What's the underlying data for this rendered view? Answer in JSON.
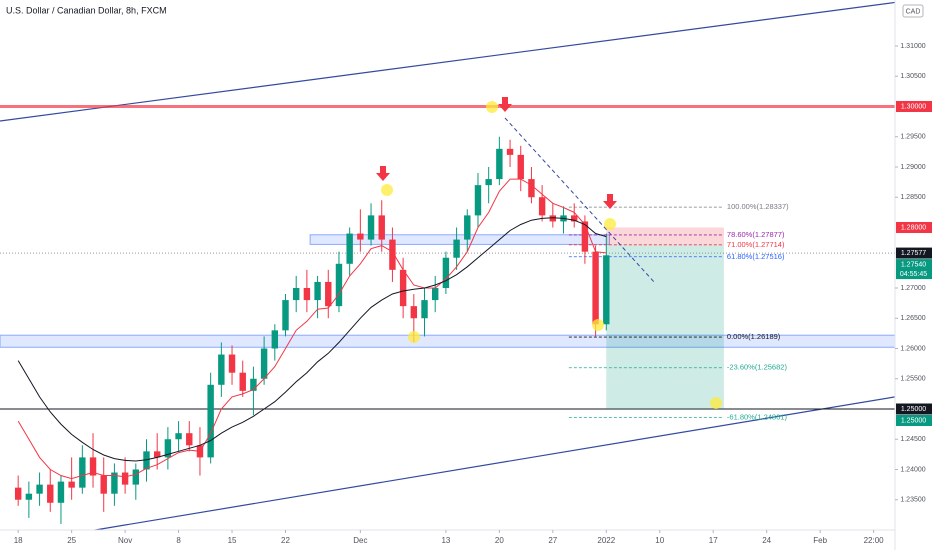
{
  "chart_data": {
    "type": "candlestick",
    "title": "U.S. Dollar / Canadian Dollar, 8h, FXCM",
    "currency": "CAD",
    "xlim": [
      -1.7,
      82
    ],
    "ylim": [
      1.23,
      1.3176
    ],
    "xticks": [
      {
        "value": 0,
        "label": "18"
      },
      {
        "value": 5,
        "label": "25"
      },
      {
        "value": 10,
        "label": "Nov"
      },
      {
        "value": 15,
        "label": "8"
      },
      {
        "value": 20,
        "label": "15"
      },
      {
        "value": 25,
        "label": "22"
      },
      {
        "value": 32,
        "label": "Dec"
      },
      {
        "value": 40,
        "label": "13"
      },
      {
        "value": 45,
        "label": "20"
      },
      {
        "value": 50,
        "label": "27"
      },
      {
        "value": 55,
        "label": "2022"
      },
      {
        "value": 60,
        "label": "10"
      },
      {
        "value": 65,
        "label": "17"
      },
      {
        "value": 70,
        "label": "24"
      },
      {
        "value": 75,
        "label": "Feb"
      },
      {
        "value": 80,
        "label": "22:00"
      }
    ],
    "yticks": [
      {
        "value": 1.31,
        "label": "1.31000"
      },
      {
        "value": 1.305,
        "label": "1.30500"
      },
      {
        "value": 1.295,
        "label": "1.29500"
      },
      {
        "value": 1.29,
        "label": "1.29000"
      },
      {
        "value": 1.285,
        "label": "1.28500"
      },
      {
        "value": 1.27,
        "label": "1.27000"
      },
      {
        "value": 1.265,
        "label": "1.26500"
      },
      {
        "value": 1.26,
        "label": "1.26000"
      },
      {
        "value": 1.255,
        "label": "1.25500"
      },
      {
        "value": 1.245,
        "label": "1.24500"
      },
      {
        "value": 1.24,
        "label": "1.24000"
      },
      {
        "value": 1.235,
        "label": "1.23500"
      }
    ],
    "up_color": "#089981",
    "down_color": "#f23645",
    "x": [
      0,
      1,
      2,
      3,
      4,
      5,
      6,
      7,
      8,
      9,
      10,
      11,
      12,
      13,
      14,
      15,
      16,
      17,
      18,
      19,
      20,
      21,
      22,
      23,
      24,
      25,
      26,
      27,
      28,
      29,
      30,
      31,
      32,
      33,
      34,
      35,
      36,
      37,
      38,
      39,
      40,
      41,
      42,
      43,
      44,
      45,
      46,
      47,
      48,
      49,
      50,
      51,
      52,
      53,
      54,
      55
    ],
    "candles": [
      [
        1.237,
        1.239,
        1.234,
        1.235
      ],
      [
        1.235,
        1.238,
        1.232,
        1.236
      ],
      [
        1.236,
        1.2395,
        1.234,
        1.2375
      ],
      [
        1.2375,
        1.24,
        1.233,
        1.2345
      ],
      [
        1.2345,
        1.239,
        1.231,
        1.238
      ],
      [
        1.238,
        1.242,
        1.235,
        1.237
      ],
      [
        1.237,
        1.244,
        1.236,
        1.242
      ],
      [
        1.242,
        1.246,
        1.237,
        1.239
      ],
      [
        1.239,
        1.242,
        1.233,
        1.236
      ],
      [
        1.236,
        1.241,
        1.234,
        1.2395
      ],
      [
        1.2395,
        1.242,
        1.236,
        1.2375
      ],
      [
        1.2375,
        1.241,
        1.235,
        1.24
      ],
      [
        1.24,
        1.245,
        1.238,
        1.243
      ],
      [
        1.243,
        1.246,
        1.24,
        1.242
      ],
      [
        1.242,
        1.247,
        1.24,
        1.245
      ],
      [
        1.245,
        1.248,
        1.243,
        1.246
      ],
      [
        1.246,
        1.248,
        1.243,
        1.244
      ],
      [
        1.244,
        1.247,
        1.239,
        1.242
      ],
      [
        1.242,
        1.256,
        1.241,
        1.254
      ],
      [
        1.254,
        1.261,
        1.252,
        1.259
      ],
      [
        1.259,
        1.2605,
        1.254,
        1.256
      ],
      [
        1.256,
        1.258,
        1.252,
        1.253
      ],
      [
        1.253,
        1.257,
        1.249,
        1.255
      ],
      [
        1.255,
        1.262,
        1.254,
        1.26
      ],
      [
        1.26,
        1.264,
        1.258,
        1.263
      ],
      [
        1.263,
        1.269,
        1.262,
        1.268
      ],
      [
        1.268,
        1.272,
        1.266,
        1.27
      ],
      [
        1.27,
        1.273,
        1.266,
        1.268
      ],
      [
        1.268,
        1.272,
        1.265,
        1.271
      ],
      [
        1.271,
        1.273,
        1.265,
        1.267
      ],
      [
        1.267,
        1.276,
        1.266,
        1.274
      ],
      [
        1.274,
        1.28,
        1.272,
        1.279
      ],
      [
        1.279,
        1.283,
        1.276,
        1.278
      ],
      [
        1.278,
        1.284,
        1.277,
        1.282
      ],
      [
        1.282,
        1.2845,
        1.276,
        1.278
      ],
      [
        1.278,
        1.28,
        1.271,
        1.273
      ],
      [
        1.273,
        1.275,
        1.265,
        1.267
      ],
      [
        1.267,
        1.269,
        1.261,
        1.265
      ],
      [
        1.265,
        1.27,
        1.262,
        1.268
      ],
      [
        1.268,
        1.272,
        1.266,
        1.27
      ],
      [
        1.27,
        1.276,
        1.269,
        1.275
      ],
      [
        1.275,
        1.28,
        1.273,
        1.278
      ],
      [
        1.278,
        1.283,
        1.276,
        1.282
      ],
      [
        1.282,
        1.289,
        1.28,
        1.287
      ],
      [
        1.287,
        1.29,
        1.284,
        1.288
      ],
      [
        1.288,
        1.295,
        1.287,
        1.293
      ],
      [
        1.293,
        1.2945,
        1.29,
        1.292
      ],
      [
        1.292,
        1.2935,
        1.286,
        1.288
      ],
      [
        1.288,
        1.29,
        1.284,
        1.285
      ],
      [
        1.285,
        1.287,
        1.281,
        1.282
      ],
      [
        1.282,
        1.284,
        1.28,
        1.281
      ],
      [
        1.281,
        1.2835,
        1.279,
        1.282
      ],
      [
        1.282,
        1.284,
        1.28,
        1.281
      ],
      [
        1.281,
        1.282,
        1.274,
        1.276
      ],
      [
        1.276,
        1.277,
        1.262,
        1.264
      ],
      [
        1.264,
        1.279,
        1.263,
        1.2754
      ]
    ],
    "series": [
      {
        "color": "#f23645",
        "values": [
          1.248,
          1.245,
          1.242,
          1.24,
          1.239,
          1.2385,
          1.239,
          1.2395,
          1.239,
          1.239,
          1.2388,
          1.2392,
          1.2402,
          1.2408,
          1.2418,
          1.2428,
          1.2432,
          1.243,
          1.246,
          1.25,
          1.252,
          1.2525,
          1.2532,
          1.255,
          1.257,
          1.26,
          1.263,
          1.2645,
          1.2665,
          1.2667,
          1.269,
          1.272,
          1.274,
          1.2765,
          1.277,
          1.276,
          1.273,
          1.2705,
          1.27,
          1.27,
          1.2715,
          1.2735,
          1.276,
          1.28,
          1.2825,
          1.286,
          1.288,
          1.288,
          1.287,
          1.2855,
          1.284,
          1.2833,
          1.2825,
          1.2805,
          1.276,
          1.2758
        ]
      },
      {
        "color": "#131722",
        "values": [
          1.258,
          1.255,
          1.252,
          1.2495,
          1.2475,
          1.2458,
          1.2445,
          1.2433,
          1.2424,
          1.2418,
          1.2415,
          1.2414,
          1.2416,
          1.242,
          1.2425,
          1.243,
          1.2435,
          1.244,
          1.2448,
          1.246,
          1.247,
          1.2478,
          1.2488,
          1.25,
          1.2512,
          1.2528,
          1.2545,
          1.256,
          1.2578,
          1.2592,
          1.261,
          1.263,
          1.265,
          1.2668,
          1.268,
          1.269,
          1.2695,
          1.2698,
          1.27,
          1.2705,
          1.2712,
          1.2722,
          1.2735,
          1.275,
          1.2765,
          1.278,
          1.2795,
          1.2805,
          1.2812,
          1.2815,
          1.2816,
          1.2815,
          1.2812,
          1.2805,
          1.279,
          1.2785
        ]
      }
    ],
    "trendlines": [
      {
        "color": "#3449a0",
        "x": [
          -1.7,
          82
        ],
        "y": [
          1.2976,
          1.3172
        ]
      },
      {
        "color": "#3449a0",
        "x": [
          7.2,
          82
        ],
        "y": [
          1.23,
          1.252
        ]
      }
    ],
    "zones": [
      {
        "color": "#2962ff",
        "x": [
          -1.7,
          82
        ],
        "y": [
          1.2602,
          1.2622
        ]
      },
      {
        "color": "#2962ff",
        "x": [
          27.3,
          55.3
        ],
        "y": [
          1.2772,
          1.2788
        ]
      }
    ],
    "hlines": [
      {
        "price": 1.3,
        "color": "#f23645",
        "width": 3
      },
      {
        "price": 1.25,
        "color": "#131722",
        "width": 1
      },
      {
        "price": 1.27577,
        "color": "#9598a1",
        "width": 1,
        "dotted": true
      }
    ],
    "position": {
      "x": [
        55,
        66
      ],
      "stop": 1.28,
      "entry": 1.27714,
      "target": 1.25
    },
    "fib": {
      "x": [
        51.5,
        66
      ],
      "levels": [
        {
          "price": 1.28337,
          "label": "100.00%(1.28337)",
          "color": "#787b86"
        },
        {
          "price": 1.27877,
          "label": "78.60%(1.27877)",
          "color": "#9c27b0"
        },
        {
          "price": 1.27714,
          "label": "71.00%(1.27714)",
          "color": "#f23645"
        },
        {
          "price": 1.27516,
          "label": "61.80%(1.27516)",
          "color": "#2962ff"
        },
        {
          "price": 1.26189,
          "label": "0.00%(1.26189)",
          "color": "#131722"
        },
        {
          "price": 1.25682,
          "label": "-23.60%(1.25682)",
          "color": "#22ab94"
        },
        {
          "price": 1.24861,
          "label": "-61.80%(1.24861)",
          "color": "#22ab94"
        }
      ]
    },
    "price_labels": [
      {
        "value": 1.3,
        "label": "1.30000",
        "color": "#f23645"
      },
      {
        "value": 1.28,
        "label": "1.28000",
        "color": "#f23645"
      },
      {
        "value": 1.27577,
        "label": "1.27577",
        "color": "#131722"
      },
      {
        "value": 1.2754,
        "label": "1.27540",
        "color": "#089981",
        "countdown": "04:55:45"
      },
      {
        "value": 1.25,
        "label": "1.25000",
        "color": "#131722"
      },
      {
        "value": 1.25,
        "label": "1.25000",
        "color": "#089981"
      }
    ]
  }
}
